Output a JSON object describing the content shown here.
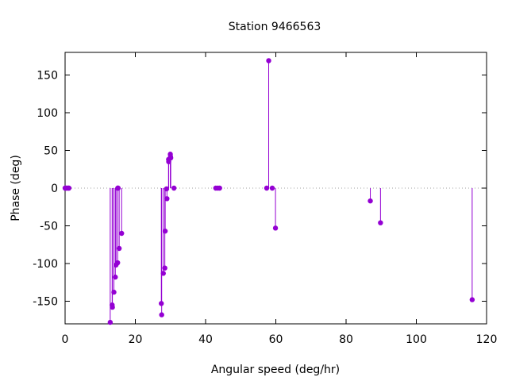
{
  "chart_data": {
    "type": "scatter",
    "style": "impulses-with-points",
    "title": "Station 9466563",
    "xlabel": "Angular speed (deg/hr)",
    "ylabel": "Phase (deg)",
    "xlim": [
      0,
      120
    ],
    "ylim": [
      -180,
      180
    ],
    "xticks": [
      0,
      20,
      40,
      60,
      80,
      100,
      120
    ],
    "yticks": [
      -150,
      -100,
      -50,
      0,
      50,
      100,
      150
    ],
    "grid": false,
    "zero_line": true,
    "series": [
      {
        "color": "#9400d3",
        "points": [
          {
            "x": 0.0,
            "y": 0
          },
          {
            "x": 0.04,
            "y": 0
          },
          {
            "x": 0.08,
            "y": 0
          },
          {
            "x": 0.5,
            "y": 0
          },
          {
            "x": 0.54,
            "y": 0
          },
          {
            "x": 1.0,
            "y": 0
          },
          {
            "x": 1.1,
            "y": 0
          },
          {
            "x": 12.85,
            "y": -178
          },
          {
            "x": 13.4,
            "y": -155
          },
          {
            "x": 13.47,
            "y": -158
          },
          {
            "x": 13.9,
            "y": -138
          },
          {
            "x": 14.3,
            "y": -118
          },
          {
            "x": 14.5,
            "y": -102
          },
          {
            "x": 14.96,
            "y": -99
          },
          {
            "x": 15.0,
            "y": 0
          },
          {
            "x": 15.04,
            "y": 0
          },
          {
            "x": 15.1,
            "y": 0
          },
          {
            "x": 15.4,
            "y": -80
          },
          {
            "x": 16.1,
            "y": -60
          },
          {
            "x": 27.4,
            "y": -153
          },
          {
            "x": 27.5,
            "y": -168
          },
          {
            "x": 27.97,
            "y": -113
          },
          {
            "x": 28.4,
            "y": -106
          },
          {
            "x": 28.5,
            "y": -57
          },
          {
            "x": 28.9,
            "y": -1
          },
          {
            "x": 29.0,
            "y": -14
          },
          {
            "x": 29.45,
            "y": 38
          },
          {
            "x": 29.5,
            "y": 35
          },
          {
            "x": 29.96,
            "y": 45
          },
          {
            "x": 30.0,
            "y": 42
          },
          {
            "x": 30.08,
            "y": 40
          },
          {
            "x": 31.0,
            "y": 0
          },
          {
            "x": 42.9,
            "y": 0
          },
          {
            "x": 43.5,
            "y": 0
          },
          {
            "x": 44.0,
            "y": 0
          },
          {
            "x": 57.4,
            "y": 0
          },
          {
            "x": 57.97,
            "y": 169
          },
          {
            "x": 58.98,
            "y": 0
          },
          {
            "x": 59.9,
            "y": -53
          },
          {
            "x": 86.9,
            "y": -17
          },
          {
            "x": 89.8,
            "y": -46
          },
          {
            "x": 115.9,
            "y": -148
          }
        ]
      }
    ]
  }
}
